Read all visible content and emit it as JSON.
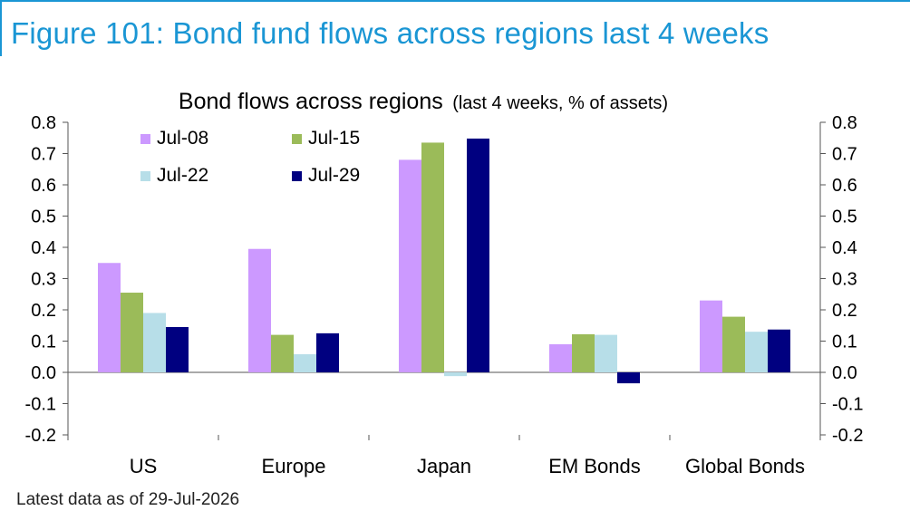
{
  "figure_title": "Figure 101: Bond fund flows across regions last 4 weeks",
  "footnote": "Latest data as of 29-Jul-2026",
  "chart_data": {
    "type": "bar",
    "title": "Bond flows across regions",
    "subtitle": "(last 4 weeks, % of assets)",
    "xlabel": "",
    "ylabel": "",
    "categories": [
      "US",
      "Europe",
      "Japan",
      "EM Bonds",
      "Global Bonds"
    ],
    "series": [
      {
        "name": "Jul-08",
        "color": "#cc99ff",
        "values": [
          0.35,
          0.395,
          0.68,
          0.09,
          0.23
        ]
      },
      {
        "name": "Jul-15",
        "color": "#9bbb59",
        "values": [
          0.255,
          0.12,
          0.735,
          0.122,
          0.178
        ]
      },
      {
        "name": "Jul-22",
        "color": "#b7dee8",
        "values": [
          0.19,
          0.058,
          -0.012,
          0.12,
          0.13
        ]
      },
      {
        "name": "Jul-29",
        "color": "#000080",
        "values": [
          0.145,
          0.125,
          0.748,
          -0.035,
          0.137
        ]
      }
    ],
    "ylim": [
      -0.2,
      0.8
    ],
    "yticks": [
      "0.8",
      "0.7",
      "0.6",
      "0.5",
      "0.4",
      "0.3",
      "0.2",
      "0.1",
      "0.0",
      "-0.1",
      "-0.2"
    ],
    "y_axis_right": true,
    "legend": "top-left",
    "grid": false
  }
}
